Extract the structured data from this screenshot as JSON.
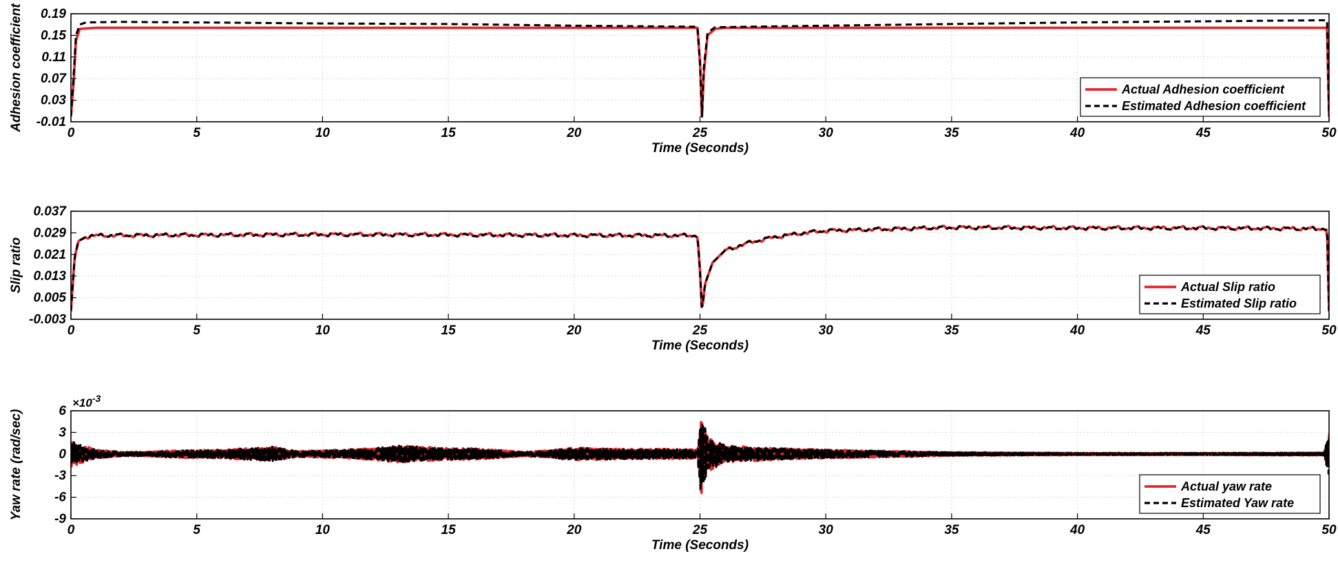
{
  "chart_data": [
    {
      "type": "line",
      "xlabel": "Time (Seconds)",
      "ylabel": "Adhesion coefficient",
      "xlim": [
        0,
        50
      ],
      "ylim": [
        -0.01,
        0.19
      ],
      "xticks": [
        0,
        5,
        10,
        15,
        20,
        25,
        30,
        35,
        40,
        45,
        50
      ],
      "yticks": [
        -0.01,
        0.03,
        0.07,
        0.11,
        0.15,
        0.19
      ],
      "ytick_labels": [
        "-0.01",
        "0.03",
        "0.07",
        "0.11",
        "0.15",
        "0.19"
      ],
      "grid": true,
      "legend_position": "bottom-right",
      "series": [
        {
          "name": "Actual Adhesion coefficient",
          "color": "#e8242b",
          "style": "solid",
          "points": [
            [
              0,
              0.0
            ],
            [
              0.1,
              0.06
            ],
            [
              0.2,
              0.14
            ],
            [
              0.35,
              0.162
            ],
            [
              1,
              0.164
            ],
            [
              5,
              0.164
            ],
            [
              10,
              0.164
            ],
            [
              15,
              0.164
            ],
            [
              20,
              0.164
            ],
            [
              24.9,
              0.164
            ],
            [
              25.0,
              0.1
            ],
            [
              25.08,
              0.0
            ],
            [
              25.15,
              0.08
            ],
            [
              25.3,
              0.15
            ],
            [
              25.6,
              0.162
            ],
            [
              26,
              0.164
            ],
            [
              30,
              0.164
            ],
            [
              35,
              0.164
            ],
            [
              40,
              0.164
            ],
            [
              45,
              0.164
            ],
            [
              49.92,
              0.164
            ],
            [
              50,
              0.0
            ]
          ]
        },
        {
          "name": "Estimated Adhesion coefficient",
          "color": "#000000",
          "style": "dashed",
          "points": [
            [
              0,
              0.0
            ],
            [
              0.1,
              0.07
            ],
            [
              0.2,
              0.15
            ],
            [
              0.35,
              0.17
            ],
            [
              0.6,
              0.174
            ],
            [
              2,
              0.175
            ],
            [
              5,
              0.174
            ],
            [
              10,
              0.172
            ],
            [
              15,
              0.171
            ],
            [
              20,
              0.168
            ],
            [
              24.9,
              0.166
            ],
            [
              25.0,
              0.1
            ],
            [
              25.08,
              0.0
            ],
            [
              25.15,
              0.09
            ],
            [
              25.3,
              0.155
            ],
            [
              25.6,
              0.165
            ],
            [
              27,
              0.166
            ],
            [
              30,
              0.168
            ],
            [
              35,
              0.171
            ],
            [
              40,
              0.174
            ],
            [
              45,
              0.176
            ],
            [
              49.92,
              0.178
            ],
            [
              50,
              0.0
            ]
          ]
        }
      ]
    },
    {
      "type": "line",
      "xlabel": "Time (Seconds)",
      "ylabel": "Slip ratio",
      "xlim": [
        0,
        50
      ],
      "ylim": [
        -0.003,
        0.037
      ],
      "xticks": [
        0,
        5,
        10,
        15,
        20,
        25,
        30,
        35,
        40,
        45,
        50
      ],
      "yticks": [
        -0.003,
        0.005,
        0.013,
        0.021,
        0.029,
        0.037
      ],
      "ytick_labels": [
        "-0.003",
        "0.005",
        "0.013",
        "0.021",
        "0.029",
        "0.037"
      ],
      "grid": true,
      "legend_position": "bottom-right",
      "series": [
        {
          "name": "Actual Slip ratio",
          "color": "#e8242b",
          "style": "solid",
          "points": [
            [
              0,
              0.0
            ],
            [
              0.15,
              0.02
            ],
            [
              0.3,
              0.026
            ],
            [
              0.6,
              0.0275
            ],
            [
              1,
              0.028
            ],
            [
              5,
              0.0282
            ],
            [
              10,
              0.0284
            ],
            [
              15,
              0.0283
            ],
            [
              20,
              0.0281
            ],
            [
              24.9,
              0.028
            ],
            [
              25.0,
              0.015
            ],
            [
              25.08,
              0.0
            ],
            [
              25.2,
              0.01
            ],
            [
              25.5,
              0.018
            ],
            [
              26,
              0.0225
            ],
            [
              27,
              0.0255
            ],
            [
              28,
              0.0275
            ],
            [
              29,
              0.0288
            ],
            [
              30,
              0.0298
            ],
            [
              35,
              0.031
            ],
            [
              40,
              0.0308
            ],
            [
              45,
              0.0308
            ],
            [
              49.92,
              0.0305
            ],
            [
              50,
              0.0
            ]
          ],
          "noise_amplitude": 0.0007
        },
        {
          "name": "Estimated Slip ratio",
          "color": "#000000",
          "style": "dashed",
          "points": [
            [
              0,
              0.0
            ],
            [
              0.15,
              0.02
            ],
            [
              0.3,
              0.026
            ],
            [
              0.6,
              0.0275
            ],
            [
              1,
              0.028
            ],
            [
              5,
              0.0282
            ],
            [
              10,
              0.0284
            ],
            [
              15,
              0.0283
            ],
            [
              20,
              0.0281
            ],
            [
              24.9,
              0.028
            ],
            [
              25.0,
              0.015
            ],
            [
              25.08,
              0.0
            ],
            [
              25.2,
              0.01
            ],
            [
              25.5,
              0.018
            ],
            [
              26,
              0.0225
            ],
            [
              27,
              0.0255
            ],
            [
              28,
              0.0275
            ],
            [
              29,
              0.0288
            ],
            [
              30,
              0.0298
            ],
            [
              35,
              0.031
            ],
            [
              40,
              0.0308
            ],
            [
              45,
              0.0308
            ],
            [
              49.92,
              0.0305
            ],
            [
              50,
              0.0
            ]
          ],
          "noise_amplitude": 0.0007
        }
      ]
    },
    {
      "type": "line",
      "xlabel": "Time (Seconds)",
      "ylabel": "Yaw rate (rad/sec)",
      "y_multiplier": "×10",
      "y_multiplier_exponent": "-3",
      "xlim": [
        0,
        50
      ],
      "ylim": [
        -9,
        6
      ],
      "xticks": [
        0,
        5,
        10,
        15,
        20,
        25,
        30,
        35,
        40,
        45,
        50
      ],
      "yticks": [
        -9,
        -6,
        -3,
        0,
        3,
        6
      ],
      "ytick_labels": [
        "-9",
        "-6",
        "-3",
        "0",
        "3",
        "6"
      ],
      "grid": true,
      "legend_position": "bottom-right",
      "series": [
        {
          "name": "Actual yaw rate",
          "color": "#e8242b",
          "style": "solid",
          "envelope": [
            [
              0,
              1.8
            ],
            [
              0.5,
              1.2
            ],
            [
              1,
              0.6
            ],
            [
              2,
              0.3
            ],
            [
              3,
              0.3
            ],
            [
              4,
              0.5
            ],
            [
              6,
              0.6
            ],
            [
              8,
              1.0
            ],
            [
              9,
              0.4
            ],
            [
              10,
              0.5
            ],
            [
              12,
              0.8
            ],
            [
              13,
              1.2
            ],
            [
              15,
              0.8
            ],
            [
              16,
              0.8
            ],
            [
              18,
              0.3
            ],
            [
              19,
              0.5
            ],
            [
              20,
              0.9
            ],
            [
              22,
              0.7
            ],
            [
              24,
              0.7
            ],
            [
              24.9,
              0.6
            ],
            [
              25.05,
              6.5
            ],
            [
              25.3,
              2.5
            ],
            [
              26,
              1.2
            ],
            [
              28,
              0.8
            ],
            [
              30,
              0.6
            ],
            [
              33,
              0.4
            ],
            [
              35,
              0.25
            ],
            [
              40,
              0.15
            ],
            [
              45,
              0.15
            ],
            [
              49.8,
              0.2
            ],
            [
              50,
              3.0
            ]
          ]
        },
        {
          "name": "Estimated Yaw rate",
          "color": "#000000",
          "style": "dashed",
          "envelope": [
            [
              0,
              1.8
            ],
            [
              0.5,
              1.2
            ],
            [
              1,
              0.6
            ],
            [
              2,
              0.3
            ],
            [
              3,
              0.3
            ],
            [
              4,
              0.5
            ],
            [
              6,
              0.6
            ],
            [
              8,
              1.0
            ],
            [
              9,
              0.4
            ],
            [
              10,
              0.5
            ],
            [
              12,
              0.8
            ],
            [
              13,
              1.2
            ],
            [
              15,
              0.8
            ],
            [
              16,
              0.8
            ],
            [
              18,
              0.3
            ],
            [
              19,
              0.5
            ],
            [
              20,
              0.9
            ],
            [
              22,
              0.7
            ],
            [
              24,
              0.7
            ],
            [
              24.9,
              0.6
            ],
            [
              25.05,
              6.5
            ],
            [
              25.3,
              2.5
            ],
            [
              26,
              1.2
            ],
            [
              28,
              0.8
            ],
            [
              30,
              0.6
            ],
            [
              33,
              0.4
            ],
            [
              35,
              0.25
            ],
            [
              40,
              0.15
            ],
            [
              45,
              0.15
            ],
            [
              49.8,
              0.2
            ],
            [
              50,
              3.0
            ]
          ]
        }
      ]
    }
  ]
}
